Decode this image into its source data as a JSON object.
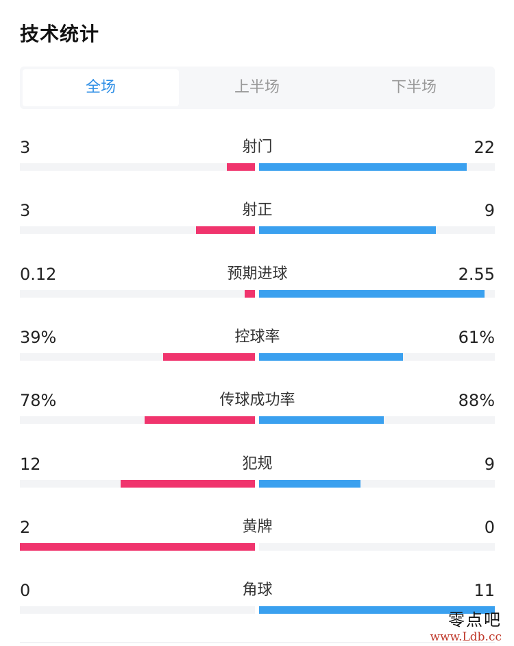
{
  "header": {
    "title": "技术统计"
  },
  "tabs": [
    {
      "label": "全场",
      "active": true
    },
    {
      "label": "上半场",
      "active": false
    },
    {
      "label": "下半场",
      "active": false
    }
  ],
  "colors": {
    "home_bar": "#f0346d",
    "away_bar": "#3aa0ef",
    "track": "#f3f4f6",
    "active_tab": "#2f8fe6"
  },
  "stats": [
    {
      "label": "射门",
      "home": "3",
      "away": "22",
      "home_fill": 0.12,
      "away_fill": 0.88
    },
    {
      "label": "射正",
      "home": "3",
      "away": "9",
      "home_fill": 0.25,
      "away_fill": 0.75
    },
    {
      "label": "预期进球",
      "home": "0.12",
      "away": "2.55",
      "home_fill": 0.045,
      "away_fill": 0.955
    },
    {
      "label": "控球率",
      "home": "39%",
      "away": "61%",
      "home_fill": 0.39,
      "away_fill": 0.61
    },
    {
      "label": "传球成功率",
      "home": "78%",
      "away": "88%",
      "home_fill": 0.47,
      "away_fill": 0.53
    },
    {
      "label": "犯规",
      "home": "12",
      "away": "9",
      "home_fill": 0.57,
      "away_fill": 0.43
    },
    {
      "label": "黄牌",
      "home": "2",
      "away": "0",
      "home_fill": 1.0,
      "away_fill": 0.0
    },
    {
      "label": "角球",
      "home": "0",
      "away": "11",
      "home_fill": 0.0,
      "away_fill": 1.0
    }
  ],
  "watermark": {
    "text": "零点吧",
    "url": "www.Ldb.cc"
  }
}
